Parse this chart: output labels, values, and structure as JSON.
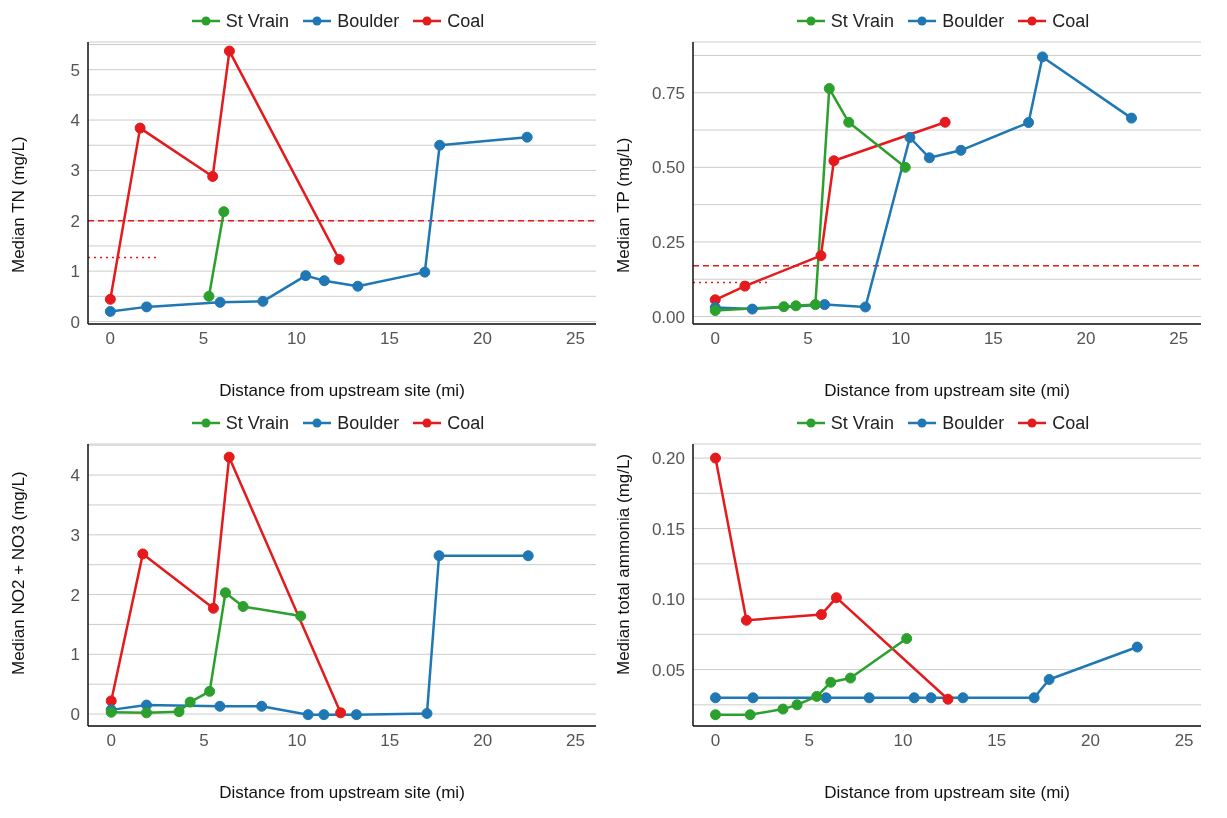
{
  "chart_data": [
    {
      "type": "line",
      "xlabel": "Distance from upstream site (mi)",
      "ylabel": "Median TN (mg/L)",
      "xlim": [
        -1.2,
        26.1
      ],
      "xticks": [
        0,
        5,
        10,
        15,
        20,
        25
      ],
      "ylim": [
        -0.05,
        5.55
      ],
      "yticks": [
        0,
        {
          "value": 0.5,
          "label": null
        },
        1,
        {
          "value": 1.5,
          "label": null
        },
        2,
        {
          "value": 2.5,
          "label": null
        },
        3,
        {
          "value": 3.5,
          "label": null
        },
        4,
        {
          "value": 4.5,
          "label": null
        },
        5,
        {
          "value": 5.5,
          "label": null
        }
      ],
      "grid": "y",
      "legend": "top",
      "marker": "circle",
      "line_style": "solid",
      "ref_lines": [
        {
          "axis": "y",
          "value": 2.0,
          "color": "#e41a1c",
          "line_style": "dashed"
        }
      ],
      "series": [
        {
          "name": "St Vrain",
          "color": "#2ca02c",
          "x": [
            5.3,
            6.1
          ],
          "values": [
            0.5,
            2.18
          ]
        },
        {
          "name": "Boulder",
          "color": "#1f77b4",
          "x": [
            0,
            1.95,
            5.9,
            8.2,
            10.5,
            11.5,
            13.3,
            16.9,
            17.7,
            22.4
          ],
          "values": [
            0.2,
            0.29,
            0.38,
            0.4,
            0.91,
            0.81,
            0.7,
            0.98,
            3.5,
            3.66
          ]
        },
        {
          "name": "Coal",
          "color": "#e41a1c",
          "x": [
            0,
            1.6,
            5.5,
            6.4,
            12.3
          ],
          "values": [
            0.44,
            3.84,
            2.88,
            5.37,
            1.23
          ]
        },
        {
          "type": "line",
          "color": "#e41a1c",
          "line_style": "dotted",
          "marker": "none",
          "x": [
            -1.2,
            2.6
          ],
          "values": [
            1.27,
            1.27
          ]
        }
      ]
    },
    {
      "type": "line",
      "xlabel": "Distance from upstream site (mi)",
      "ylabel": "Median TP (mg/L)",
      "xlim": [
        -1.2,
        26.2
      ],
      "xticks": [
        0,
        5,
        10,
        15,
        20,
        25
      ],
      "ylim": [
        -0.025,
        0.92
      ],
      "yticks": [
        {
          "value": 0,
          "label": "0.00"
        },
        {
          "value": 0.125,
          "label": null
        },
        {
          "value": 0.25,
          "label": "0.25"
        },
        {
          "value": 0.375,
          "label": null
        },
        {
          "value": 0.5,
          "label": "0.50"
        },
        {
          "value": 0.625,
          "label": null
        },
        {
          "value": 0.75,
          "label": "0.75"
        },
        {
          "value": 0.875,
          "label": null
        }
      ],
      "grid": "y",
      "legend": "top",
      "marker": "circle",
      "line_style": "solid",
      "ref_lines": [
        {
          "axis": "y",
          "value": 0.17,
          "color": "#e41a1c",
          "line_style": "dashed"
        }
      ],
      "series": [
        {
          "name": "St Vrain",
          "color": "#2ca02c",
          "x": [
            0,
            3.7,
            4.35,
            5.4,
            6.15,
            7.2,
            10.25
          ],
          "values": [
            0.02,
            0.033,
            0.036,
            0.04,
            0.764,
            0.651,
            0.5
          ]
        },
        {
          "name": "Boulder",
          "color": "#1f77b4",
          "x": [
            0,
            2.0,
            5.9,
            8.1,
            10.5,
            11.55,
            13.25,
            16.9,
            17.65,
            22.45
          ],
          "values": [
            0.03,
            0.025,
            0.04,
            0.032,
            0.6,
            0.532,
            0.557,
            0.65,
            0.87,
            0.665
          ]
        },
        {
          "name": "Coal",
          "color": "#e41a1c",
          "x": [
            0,
            1.6,
            5.7,
            6.4,
            12.4
          ],
          "values": [
            0.056,
            0.102,
            0.204,
            0.522,
            0.651
          ]
        },
        {
          "type": "line",
          "color": "#e41a1c",
          "line_style": "dotted",
          "marker": "none",
          "x": [
            -1.2,
            2.9
          ],
          "values": [
            0.114,
            0.114
          ]
        }
      ]
    },
    {
      "type": "line",
      "xlabel": "Distance from upstream site (mi)",
      "ylabel": "Median NO2 + NO3 (mg/L)",
      "xlim": [
        -1.25,
        26.1
      ],
      "xticks": [
        0,
        5,
        10,
        15,
        20,
        25
      ],
      "ylim": [
        -0.2,
        4.52
      ],
      "yticks": [
        0,
        {
          "value": 0.5,
          "label": null
        },
        1,
        {
          "value": 1.5,
          "label": null
        },
        2,
        {
          "value": 2.5,
          "label": null
        },
        3,
        {
          "value": 3.5,
          "label": null
        },
        4,
        {
          "value": 4.5,
          "label": null
        }
      ],
      "grid": "y",
      "legend": "top",
      "marker": "circle",
      "line_style": "solid",
      "series": [
        {
          "name": "St Vrain",
          "color": "#2ca02c",
          "x": [
            0,
            1.9,
            3.65,
            4.25,
            5.3,
            6.15,
            7.1,
            10.2
          ],
          "values": [
            0.03,
            0.02,
            0.04,
            0.2,
            0.38,
            2.03,
            1.8,
            1.64
          ]
        },
        {
          "name": "Boulder",
          "color": "#1f77b4",
          "x": [
            0,
            1.9,
            5.85,
            8.1,
            10.6,
            11.45,
            13.2,
            17.0,
            17.65,
            22.45
          ],
          "values": [
            0.07,
            0.15,
            0.13,
            0.13,
            -0.01,
            -0.01,
            -0.01,
            0.01,
            2.65,
            2.65
          ]
        },
        {
          "name": "Coal",
          "color": "#e41a1c",
          "x": [
            0,
            1.7,
            5.5,
            6.35,
            12.35
          ],
          "values": [
            0.22,
            2.68,
            1.77,
            4.3,
            0.02
          ]
        }
      ]
    },
    {
      "type": "line",
      "xlabel": "Distance from upstream site (mi)",
      "ylabel": "Median total ammonia (mg/L)",
      "xlim": [
        -1.2,
        25.9
      ],
      "xticks": [
        0,
        5,
        10,
        15,
        20,
        25
      ],
      "ylim": [
        0.01,
        0.21
      ],
      "yticks": [
        {
          "value": 0.025,
          "label": null
        },
        {
          "value": 0.05,
          "label": "0.05"
        },
        {
          "value": 0.075,
          "label": null
        },
        {
          "value": 0.1,
          "label": "0.10"
        },
        {
          "value": 0.125,
          "label": null
        },
        {
          "value": 0.15,
          "label": "0.15"
        },
        {
          "value": 0.175,
          "label": null
        },
        {
          "value": 0.2,
          "label": "0.20"
        }
      ],
      "grid": "y",
      "legend": "top",
      "marker": "circle",
      "line_style": "solid",
      "series": [
        {
          "name": "St Vrain",
          "color": "#2ca02c",
          "x": [
            0,
            1.85,
            3.6,
            4.35,
            5.4,
            6.15,
            7.2,
            10.2
          ],
          "values": [
            0.018,
            0.018,
            0.022,
            0.025,
            0.031,
            0.041,
            0.044,
            0.072
          ]
        },
        {
          "name": "Boulder",
          "color": "#1f77b4",
          "x": [
            0,
            2.0,
            5.9,
            8.2,
            10.6,
            11.5,
            13.2,
            17.0,
            17.8,
            22.5
          ],
          "values": [
            0.03,
            0.03,
            0.03,
            0.03,
            0.03,
            0.03,
            0.03,
            0.03,
            0.043,
            0.066
          ]
        },
        {
          "name": "Coal",
          "color": "#e41a1c",
          "x": [
            0,
            1.65,
            5.65,
            6.45,
            12.4
          ],
          "values": [
            0.2,
            0.085,
            0.089,
            0.101,
            0.029
          ]
        }
      ]
    }
  ]
}
